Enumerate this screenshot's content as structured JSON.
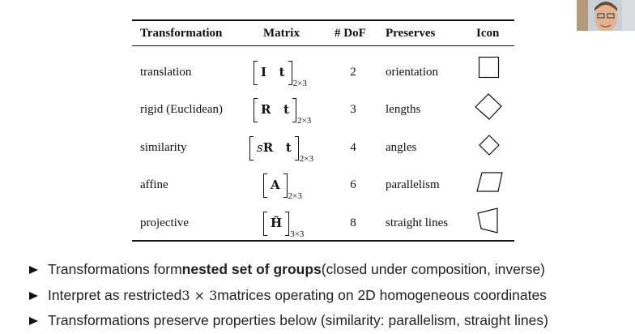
{
  "table": {
    "headers": {
      "transformation": "Transformation",
      "matrix": "Matrix",
      "dof": "# DoF",
      "preserves": "Preserves",
      "icon": "Icon"
    },
    "rows": [
      {
        "name": "translation",
        "matrix": "I   t",
        "size": "2×3",
        "dof": "2",
        "preserves": "orientation",
        "icon": "square-icon"
      },
      {
        "name": "rigid (Euclidean)",
        "matrix": "R   t",
        "size": "2×3",
        "dof": "3",
        "preserves": "lengths",
        "icon": "rotated-square-icon"
      },
      {
        "name": "similarity",
        "matrix_scale": "s",
        "matrix": "R   t",
        "size": "2×3",
        "dof": "4",
        "preserves": "angles",
        "icon": "small-rotated-square-icon"
      },
      {
        "name": "affine",
        "matrix": "A",
        "size": "2×3",
        "dof": "6",
        "preserves": "parallelism",
        "icon": "parallelogram-icon"
      },
      {
        "name": "projective",
        "matrix": "H̃",
        "size": "3×3",
        "dof": "8",
        "preserves": "straight lines",
        "icon": "trapezoid-icon"
      }
    ]
  },
  "bullets": [
    {
      "before": "Transformations form ",
      "bold": "nested set of groups",
      "after": " (closed under composition, inverse)"
    },
    {
      "before": "Interpret as restricted ",
      "math": "3 × 3",
      "after": " matrices operating on 2D homogeneous coordinates"
    },
    {
      "text": "Transformations preserve properties below (similarity: parallelism, straight lines)"
    }
  ]
}
